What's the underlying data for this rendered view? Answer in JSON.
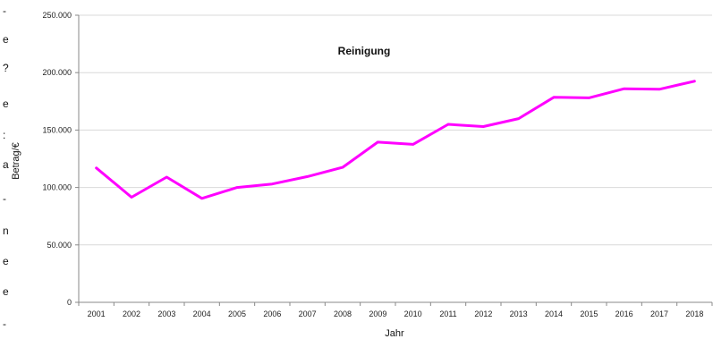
{
  "chart_data": {
    "type": "line",
    "title": "Reinigung",
    "xlabel": "Jahr",
    "ylabel": "Betrag/€",
    "categories": [
      "2001",
      "2002",
      "2003",
      "2004",
      "2005",
      "2006",
      "2007",
      "2008",
      "2009",
      "2010",
      "2011",
      "2012",
      "2013",
      "2014",
      "2015",
      "2016",
      "2017",
      "2018"
    ],
    "series": [
      {
        "values": [
          117000,
          91500,
          109000,
          90500,
          100000,
          103000,
          109500,
          117500,
          139500,
          137500,
          155000,
          153000,
          160000,
          178500,
          178000,
          186000,
          185500,
          192500
        ],
        "color": "#ff00ff"
      }
    ],
    "ylim": [
      0,
      250000
    ],
    "yticks": [
      0,
      50000,
      100000,
      150000,
      200000,
      250000
    ],
    "ytick_labels": [
      "0",
      "50.000",
      "100.000",
      "150.000",
      "200.000",
      "250.000"
    ],
    "grid": true,
    "legend": "none"
  },
  "left_margin_text": [
    "-",
    "e",
    "?",
    "e",
    ":",
    "a",
    "-",
    "n",
    "e",
    "e",
    "-"
  ],
  "colors": {
    "line": "#ff00ff",
    "grid": "#d9d9d9",
    "axis": "#888888"
  }
}
